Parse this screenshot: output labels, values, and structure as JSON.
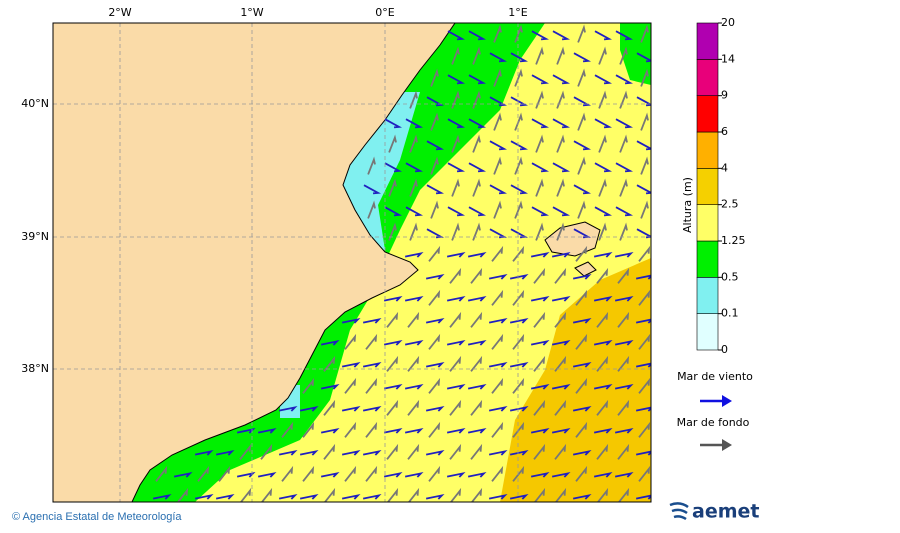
{
  "map": {
    "lon_labels": [
      "2°W",
      "1°W",
      "0°E",
      "1°E"
    ],
    "lat_labels": [
      "40°N",
      "39°N",
      "38°N"
    ]
  },
  "colorbar": {
    "title": "Altura (m)",
    "levels": [
      0,
      0.1,
      0.5,
      1.25,
      2.5,
      4,
      6,
      9,
      14,
      20
    ],
    "colors": [
      "#e0ffff",
      "#80f0f0",
      "#00f000",
      "#ffff66",
      "#f5d000",
      "#ffb000",
      "#ff0000",
      "#e8007a",
      "#b000b0"
    ]
  },
  "legend": {
    "wind_sea": "Mar de viento",
    "swell": "Mar de fondo"
  },
  "footer": {
    "credit": "© Agencia Estatal de Meteorología",
    "logo": "aemet"
  }
}
